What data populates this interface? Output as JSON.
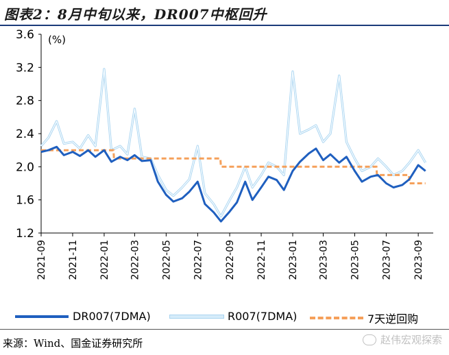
{
  "title": "图表2：8月中旬以来，DR007中枢回升",
  "source": "来源：Wind、国金证券研究所",
  "watermark": "赵伟宏观探索",
  "chart_data": {
    "type": "line",
    "unit_label": "(%)",
    "ylim": [
      1.2,
      3.6
    ],
    "yticks": [
      "3.6",
      "3.2",
      "2.8",
      "2.4",
      "2.0",
      "1.6",
      "1.2"
    ],
    "x_tick_labels": [
      "2021-09",
      "2021-11",
      "2022-01",
      "2022-03",
      "2022-05",
      "2022-07",
      "2022-09",
      "2022-11",
      "2023-01",
      "2023-03",
      "2023-05",
      "2023-07",
      "2023-09"
    ],
    "grid": false,
    "legend_position": "bottom",
    "series": [
      {
        "name": "DR007(7DMA)",
        "color": "#1f5fbf",
        "style": "solid-thick",
        "points": [
          [
            "2021-09-01",
            2.18
          ],
          [
            "2021-09-15",
            2.2
          ],
          [
            "2021-10-01",
            2.24
          ],
          [
            "2021-10-15",
            2.14
          ],
          [
            "2021-11-01",
            2.18
          ],
          [
            "2021-11-15",
            2.13
          ],
          [
            "2021-12-01",
            2.2
          ],
          [
            "2021-12-15",
            2.12
          ],
          [
            "2022-01-01",
            2.2
          ],
          [
            "2022-01-15",
            2.06
          ],
          [
            "2022-02-01",
            2.12
          ],
          [
            "2022-02-15",
            2.08
          ],
          [
            "2022-03-01",
            2.14
          ],
          [
            "2022-03-15",
            2.07
          ],
          [
            "2022-04-01",
            2.08
          ],
          [
            "2022-04-15",
            1.82
          ],
          [
            "2022-05-01",
            1.66
          ],
          [
            "2022-05-15",
            1.58
          ],
          [
            "2022-06-01",
            1.62
          ],
          [
            "2022-06-15",
            1.7
          ],
          [
            "2022-07-01",
            1.82
          ],
          [
            "2022-07-15",
            1.55
          ],
          [
            "2022-08-01",
            1.45
          ],
          [
            "2022-08-15",
            1.34
          ],
          [
            "2022-09-01",
            1.46
          ],
          [
            "2022-09-15",
            1.57
          ],
          [
            "2022-10-01",
            1.82
          ],
          [
            "2022-10-15",
            1.6
          ],
          [
            "2022-11-01",
            1.75
          ],
          [
            "2022-11-15",
            1.88
          ],
          [
            "2022-12-01",
            1.84
          ],
          [
            "2022-12-15",
            1.72
          ],
          [
            "2023-01-01",
            1.95
          ],
          [
            "2023-01-15",
            2.06
          ],
          [
            "2023-02-01",
            2.16
          ],
          [
            "2023-02-15",
            2.22
          ],
          [
            "2023-03-01",
            2.08
          ],
          [
            "2023-03-15",
            2.15
          ],
          [
            "2023-04-01",
            2.05
          ],
          [
            "2023-04-15",
            2.12
          ],
          [
            "2023-05-01",
            1.95
          ],
          [
            "2023-05-15",
            1.82
          ],
          [
            "2023-06-01",
            1.88
          ],
          [
            "2023-06-15",
            1.9
          ],
          [
            "2023-07-01",
            1.8
          ],
          [
            "2023-07-15",
            1.75
          ],
          [
            "2023-08-01",
            1.78
          ],
          [
            "2023-08-15",
            1.85
          ],
          [
            "2023-09-01",
            2.02
          ],
          [
            "2023-09-15",
            1.95
          ]
        ]
      },
      {
        "name": "R007(7DMA)",
        "color": "#b7def5",
        "style": "light-outline",
        "points": [
          [
            "2021-09-01",
            2.25
          ],
          [
            "2021-09-15",
            2.35
          ],
          [
            "2021-10-01",
            2.55
          ],
          [
            "2021-10-15",
            2.28
          ],
          [
            "2021-11-01",
            2.3
          ],
          [
            "2021-11-15",
            2.22
          ],
          [
            "2021-12-01",
            2.38
          ],
          [
            "2021-12-15",
            2.25
          ],
          [
            "2022-01-01",
            3.18
          ],
          [
            "2022-01-15",
            2.2
          ],
          [
            "2022-02-01",
            2.25
          ],
          [
            "2022-02-15",
            2.15
          ],
          [
            "2022-03-01",
            2.7
          ],
          [
            "2022-03-15",
            2.12
          ],
          [
            "2022-04-01",
            2.1
          ],
          [
            "2022-04-15",
            1.9
          ],
          [
            "2022-05-01",
            1.72
          ],
          [
            "2022-05-15",
            1.65
          ],
          [
            "2022-06-01",
            1.75
          ],
          [
            "2022-06-15",
            1.85
          ],
          [
            "2022-07-01",
            2.25
          ],
          [
            "2022-07-15",
            1.68
          ],
          [
            "2022-08-01",
            1.55
          ],
          [
            "2022-08-15",
            1.4
          ],
          [
            "2022-09-01",
            1.6
          ],
          [
            "2022-09-15",
            1.75
          ],
          [
            "2022-10-01",
            2.0
          ],
          [
            "2022-10-15",
            1.75
          ],
          [
            "2022-11-01",
            1.9
          ],
          [
            "2022-11-15",
            2.05
          ],
          [
            "2022-12-01",
            2.0
          ],
          [
            "2022-12-15",
            1.9
          ],
          [
            "2023-01-01",
            3.15
          ],
          [
            "2023-01-15",
            2.4
          ],
          [
            "2023-02-01",
            2.45
          ],
          [
            "2023-02-15",
            2.5
          ],
          [
            "2023-03-01",
            2.3
          ],
          [
            "2023-03-15",
            2.4
          ],
          [
            "2023-04-01",
            3.1
          ],
          [
            "2023-04-15",
            2.3
          ],
          [
            "2023-05-01",
            2.1
          ],
          [
            "2023-05-15",
            1.95
          ],
          [
            "2023-06-01",
            2.0
          ],
          [
            "2023-06-15",
            2.1
          ],
          [
            "2023-07-01",
            2.0
          ],
          [
            "2023-07-15",
            1.9
          ],
          [
            "2023-08-01",
            1.95
          ],
          [
            "2023-08-15",
            2.05
          ],
          [
            "2023-09-01",
            2.2
          ],
          [
            "2023-09-15",
            2.05
          ]
        ]
      },
      {
        "name": "7天逆回购",
        "color": "#f5a05a",
        "style": "dashed",
        "points": [
          [
            "2021-09-01",
            2.2
          ],
          [
            "2022-01-19",
            2.2
          ],
          [
            "2022-01-20",
            2.1
          ],
          [
            "2022-08-14",
            2.1
          ],
          [
            "2022-08-15",
            2.0
          ],
          [
            "2023-06-12",
            2.0
          ],
          [
            "2023-06-13",
            1.9
          ],
          [
            "2023-08-14",
            1.9
          ],
          [
            "2023-08-15",
            1.8
          ],
          [
            "2023-09-15",
            1.8
          ]
        ]
      }
    ]
  }
}
